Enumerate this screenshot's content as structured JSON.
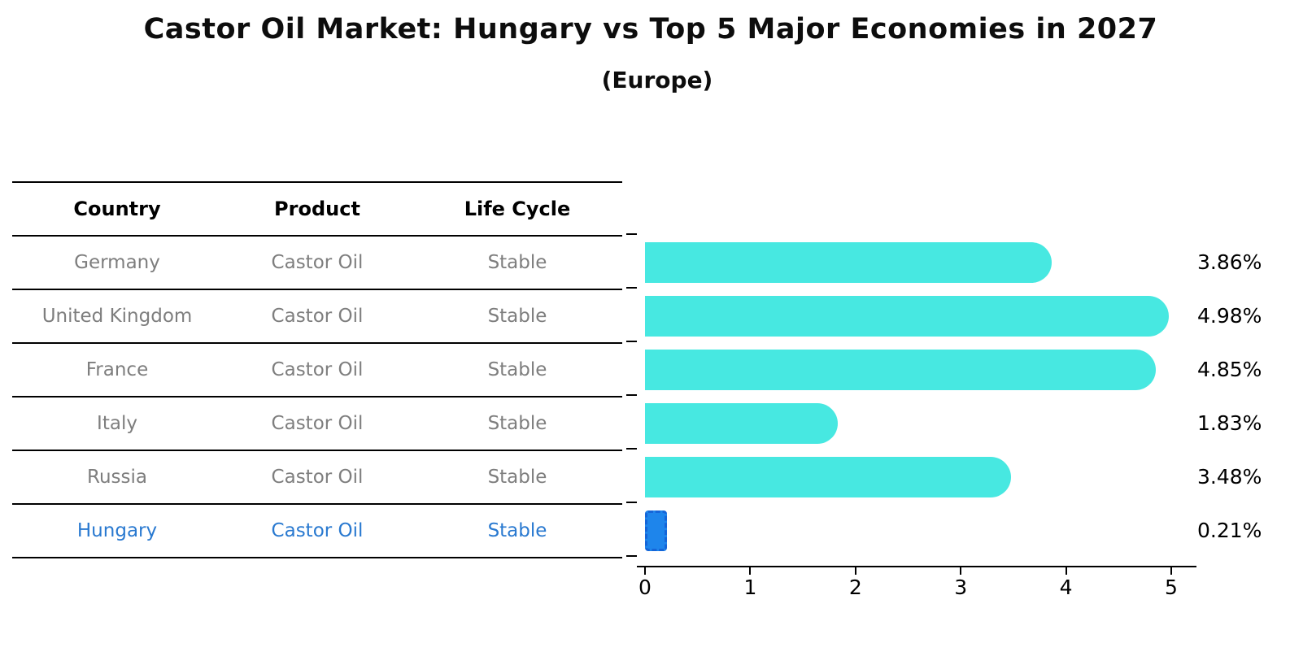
{
  "title": "Castor Oil Market: Hungary vs Top 5 Major Economies in 2027",
  "subtitle": "(Europe)",
  "table": {
    "headers": [
      "Country",
      "Product",
      "Life Cycle"
    ],
    "rows": [
      {
        "country": "Germany",
        "product": "Castor Oil",
        "life_cycle": "Stable",
        "highlighted": false
      },
      {
        "country": "United Kingdom",
        "product": "Castor Oil",
        "life_cycle": "Stable",
        "highlighted": false
      },
      {
        "country": "France",
        "product": "Castor Oil",
        "life_cycle": "Stable",
        "highlighted": false
      },
      {
        "country": "Italy",
        "product": "Castor Oil",
        "life_cycle": "Stable",
        "highlighted": false
      },
      {
        "country": "Russia",
        "product": "Castor Oil",
        "life_cycle": "Stable",
        "highlighted": false
      },
      {
        "country": "Hungary",
        "product": "Castor Oil",
        "life_cycle": "Stable",
        "highlighted": true
      }
    ]
  },
  "chart_data": {
    "type": "bar",
    "orientation": "horizontal",
    "categories": [
      "Germany",
      "United Kingdom",
      "France",
      "Italy",
      "Russia",
      "Hungary"
    ],
    "values": [
      3.86,
      4.98,
      4.85,
      1.83,
      3.48,
      0.21
    ],
    "value_labels": [
      "3.86%",
      "4.98%",
      "4.85%",
      "1.83%",
      "3.48%",
      "0.21%"
    ],
    "highlight_index": 5,
    "x_ticks": [
      "0",
      "1",
      "2",
      "3",
      "4",
      "5"
    ],
    "xlim": [
      0,
      5.25
    ],
    "grid": false,
    "legend": false,
    "bar_color": "#47e8e1",
    "highlight_bar_color": "#1e85eb",
    "highlight_border_color": "#1565d8",
    "highlight_text_color": "#2979d0",
    "table_text_color": "#7e7e7e",
    "axis_color": "#000000"
  }
}
